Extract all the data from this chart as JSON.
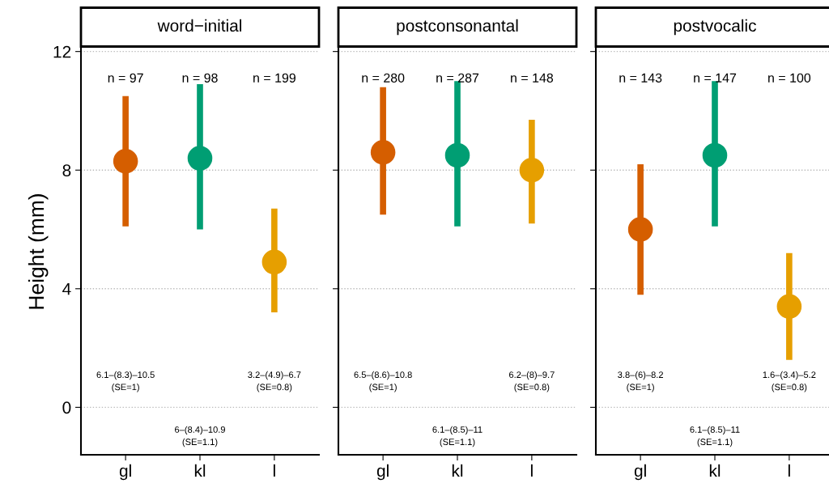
{
  "chart_data": [
    {
      "type": "scatter",
      "title": "word−initial",
      "ylabel": "Height (mm)",
      "categories": [
        "gl",
        "kl",
        "l"
      ],
      "values": [
        8.3,
        8.4,
        4.9
      ],
      "colors": [
        "#d55e00",
        "#009e73",
        "#e69f00"
      ],
      "errors": [
        [
          6.1,
          10.5
        ],
        [
          6.0,
          10.9
        ],
        [
          3.2,
          6.7
        ]
      ],
      "ylim": [
        -1.6,
        12.1
      ],
      "yticks": [
        0,
        4,
        8,
        12
      ],
      "grid": "y",
      "marker": "circle",
      "annotations": [
        "n = 97",
        "n = 98",
        "n = 199",
        "6.1–(8.3)–10.5\n(SE=1)",
        "6–(8.4)–10.9\n(SE=1.1)",
        "3.2–(4.9)–6.7\n(SE=0.8)"
      ]
    },
    {
      "type": "scatter",
      "title": "postconsonantal",
      "categories": [
        "gl",
        "kl",
        "l"
      ],
      "values": [
        8.6,
        8.5,
        8.0
      ],
      "colors": [
        "#d55e00",
        "#009e73",
        "#e69f00"
      ],
      "errors": [
        [
          6.5,
          10.8
        ],
        [
          6.1,
          11.0
        ],
        [
          6.2,
          9.7
        ]
      ],
      "ylim": [
        -1.6,
        12.1
      ],
      "yticks": [
        0,
        4,
        8,
        12
      ],
      "grid": "y",
      "marker": "circle",
      "tick_labels": "x",
      "annotations": [
        "n = 280",
        "n = 287",
        "n = 148",
        "6.5–(8.6)–10.8\n(SE=1)",
        "6.1–(8.5)–11\n(SE=1.1)",
        "6.2–(8)–9.7\n(SE=0.8)"
      ]
    },
    {
      "type": "scatter",
      "title": "postvocalic",
      "categories": [
        "gl",
        "kl",
        "l"
      ],
      "values": [
        6.0,
        8.5,
        3.4
      ],
      "colors": [
        "#d55e00",
        "#009e73",
        "#e69f00"
      ],
      "errors": [
        [
          3.8,
          8.2
        ],
        [
          6.1,
          11.0
        ],
        [
          1.6,
          5.2
        ]
      ],
      "ylim": [
        -1.6,
        12.1
      ],
      "yticks": [
        0,
        4,
        8,
        12
      ],
      "grid": "y",
      "marker": "circle",
      "tick_labels": "x",
      "annotations": [
        "n = 143",
        "n = 147",
        "n = 100",
        "3.8–(6)–8.2\n(SE=1)",
        "6.1–(8.5)–11\n(SE=1.1)",
        "1.6–(3.4)–5.2\n(SE=0.8)"
      ]
    }
  ]
}
